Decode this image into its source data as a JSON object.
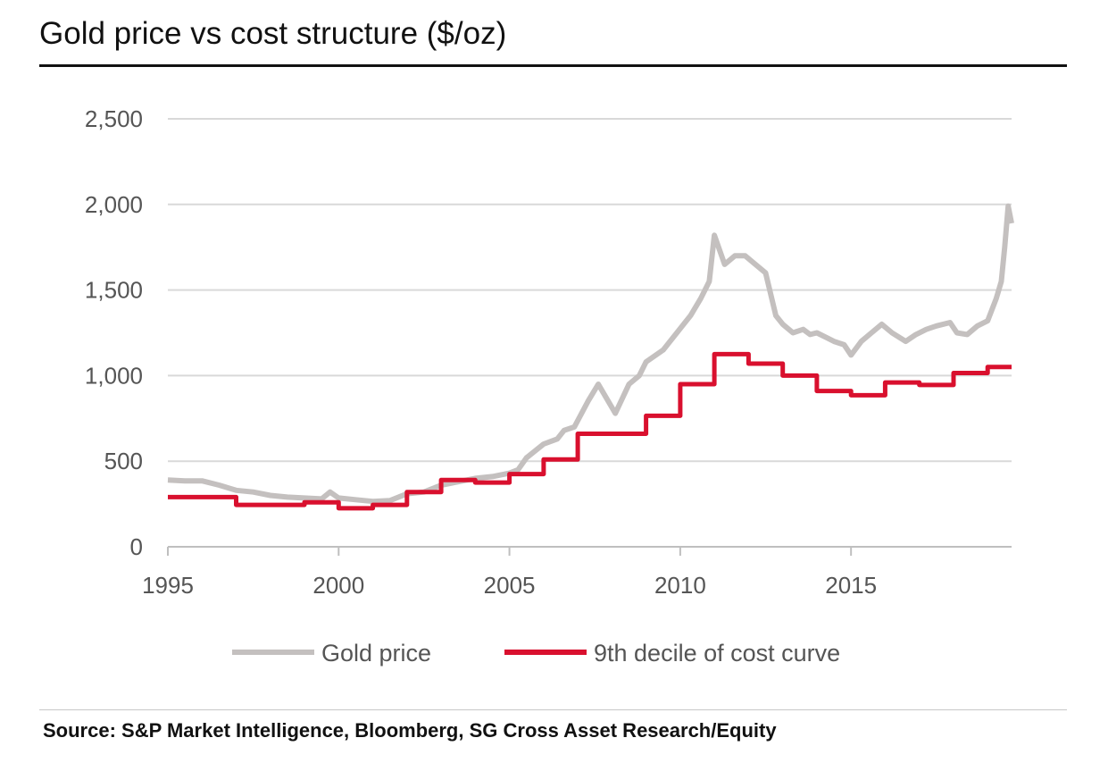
{
  "title": "Gold price vs cost structure ($/oz)",
  "source": "Source: S&P Market Intelligence, Bloomberg, SG Cross Asset Research/Equity",
  "chart_data": {
    "type": "line",
    "title": "Gold price vs cost structure ($/oz)",
    "xlabel": "",
    "ylabel": "",
    "xlim": [
      1995,
      2019.7
    ],
    "ylim": [
      0,
      2500
    ],
    "x_ticks": [
      "1995",
      "2000",
      "2005",
      "2010",
      "2015"
    ],
    "y_ticks": [
      "0",
      "500",
      "1,000",
      "1,500",
      "2,000",
      "2,500"
    ],
    "grid": true,
    "legend_position": "bottom",
    "series": [
      {
        "name": "Gold price",
        "color": "#c4c0bf",
        "style": "line",
        "x": [
          1995.0,
          1995.5,
          1996.0,
          1996.5,
          1997.0,
          1997.5,
          1998.0,
          1998.5,
          1999.0,
          1999.5,
          1999.75,
          2000.0,
          2000.5,
          2001.0,
          2001.5,
          2002.0,
          2002.5,
          2003.0,
          2003.5,
          2004.0,
          2004.5,
          2005.0,
          2005.25,
          2005.5,
          2006.0,
          2006.4,
          2006.6,
          2006.9,
          2007.3,
          2007.6,
          2008.1,
          2008.5,
          2008.8,
          2009.0,
          2009.5,
          2009.9,
          2010.3,
          2010.6,
          2010.85,
          2011.0,
          2011.3,
          2011.6,
          2011.9,
          2012.2,
          2012.5,
          2012.8,
          2013.0,
          2013.3,
          2013.6,
          2013.8,
          2014.0,
          2014.3,
          2014.5,
          2014.8,
          2015.0,
          2015.3,
          2015.6,
          2015.9,
          2016.2,
          2016.6,
          2016.9,
          2017.2,
          2017.5,
          2017.9,
          2018.1,
          2018.4,
          2018.7,
          2019.0,
          2019.25,
          2019.4,
          2019.5,
          2019.6,
          2019.7
        ],
        "values": [
          390,
          385,
          385,
          360,
          330,
          320,
          300,
          290,
          285,
          280,
          320,
          285,
          275,
          265,
          270,
          310,
          320,
          360,
          380,
          400,
          410,
          430,
          450,
          520,
          600,
          630,
          680,
          700,
          850,
          950,
          780,
          950,
          1000,
          1080,
          1150,
          1250,
          1350,
          1450,
          1550,
          1820,
          1650,
          1700,
          1700,
          1650,
          1600,
          1350,
          1300,
          1250,
          1270,
          1240,
          1250,
          1220,
          1200,
          1180,
          1120,
          1200,
          1250,
          1300,
          1250,
          1200,
          1240,
          1270,
          1290,
          1310,
          1250,
          1240,
          1290,
          1320,
          1450,
          1550,
          1750,
          1990,
          1890
        ]
      },
      {
        "name": "9th decile of cost curve",
        "color": "#d9102e",
        "style": "step",
        "x": [
          1995,
          1997,
          1999,
          2000,
          2001,
          2002,
          2003,
          2004,
          2005,
          2006,
          2007,
          2009,
          2010,
          2011,
          2012,
          2013,
          2014,
          2015,
          2016,
          2017,
          2018,
          2019,
          2019.7
        ],
        "values": [
          290,
          245,
          260,
          225,
          245,
          320,
          390,
          375,
          425,
          510,
          660,
          765,
          950,
          1125,
          1070,
          1000,
          910,
          885,
          960,
          945,
          1015,
          1050,
          1050
        ]
      }
    ]
  }
}
